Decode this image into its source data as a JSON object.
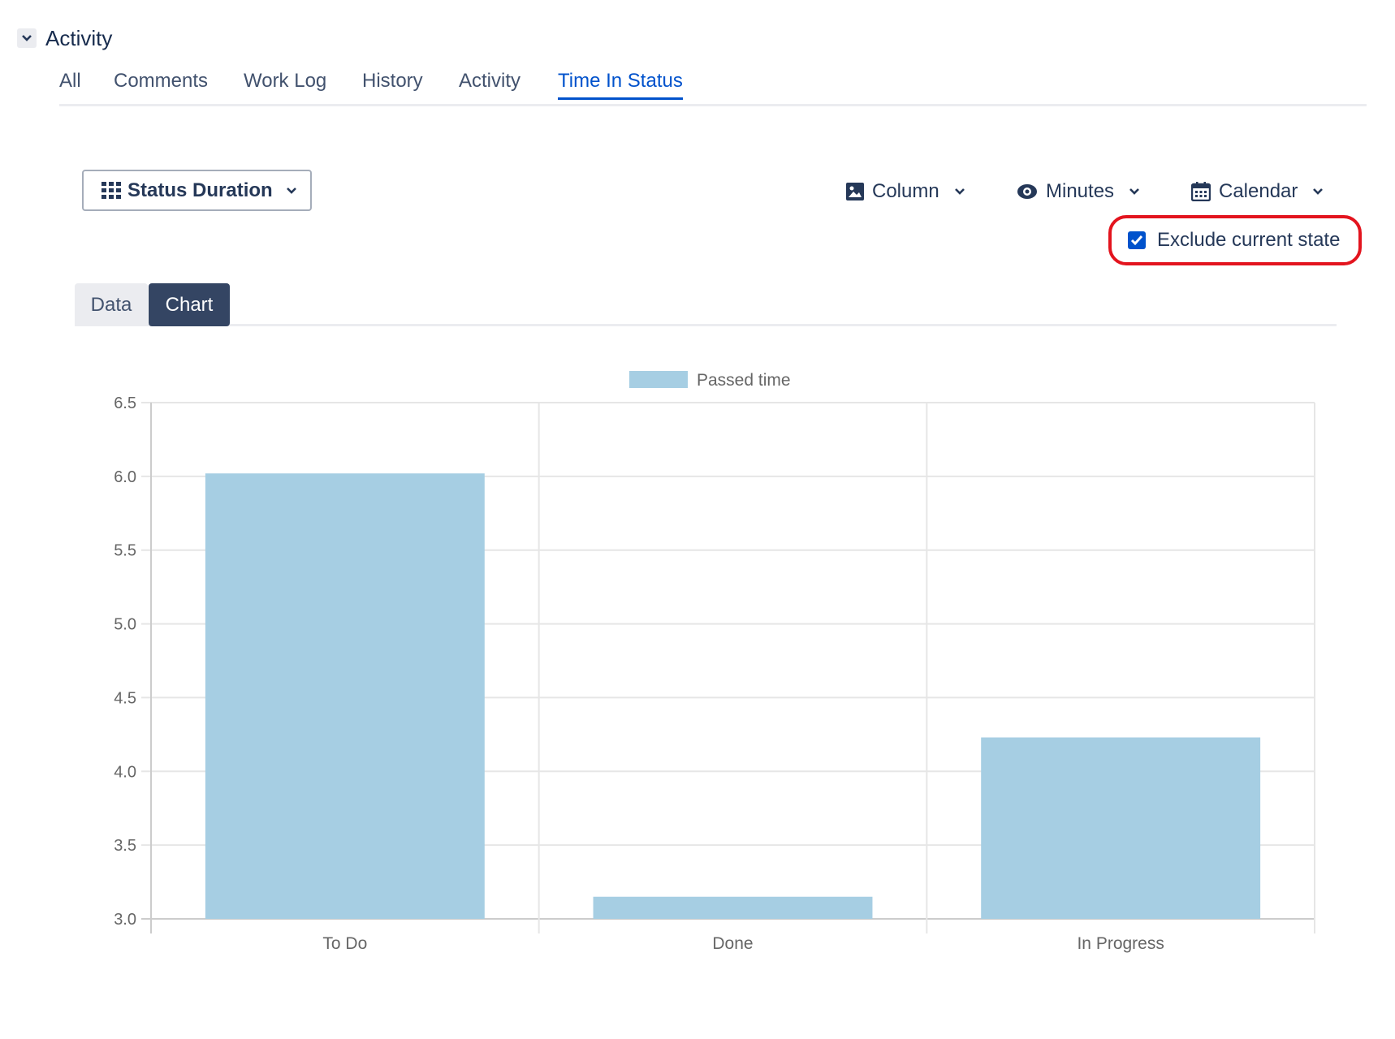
{
  "section": {
    "title": "Activity",
    "collapse_icon": "chevron-down-icon"
  },
  "tabs": [
    {
      "label": "All",
      "active": false
    },
    {
      "label": "Comments",
      "active": false
    },
    {
      "label": "Work Log",
      "active": false
    },
    {
      "label": "History",
      "active": false
    },
    {
      "label": "Activity",
      "active": false
    },
    {
      "label": "Time In Status",
      "active": true
    }
  ],
  "toolbar": {
    "report_type": "Status Duration",
    "chart_type": "Column",
    "time_unit": "Minutes",
    "calendar": "Calendar",
    "exclude_current_state": {
      "label": "Exclude current state",
      "checked": true
    }
  },
  "view_tabs": [
    {
      "label": "Data",
      "active": false
    },
    {
      "label": "Chart",
      "active": true
    }
  ],
  "colors": {
    "accent": "#0052cc",
    "bar": "#a6cee3",
    "dark_tab": "#344563",
    "highlight": "#e3141e"
  },
  "chart_data": {
    "type": "bar",
    "categories": [
      "To Do",
      "Done",
      "In Progress"
    ],
    "series": [
      {
        "name": "Passed time",
        "values": [
          6.02,
          3.15,
          4.23
        ]
      }
    ],
    "yticks": [
      "3.0",
      "3.5",
      "4.0",
      "4.5",
      "5.0",
      "5.5",
      "6.0",
      "6.5"
    ],
    "ylim": [
      3.0,
      6.5
    ],
    "legend": "top-center",
    "grid": true
  }
}
